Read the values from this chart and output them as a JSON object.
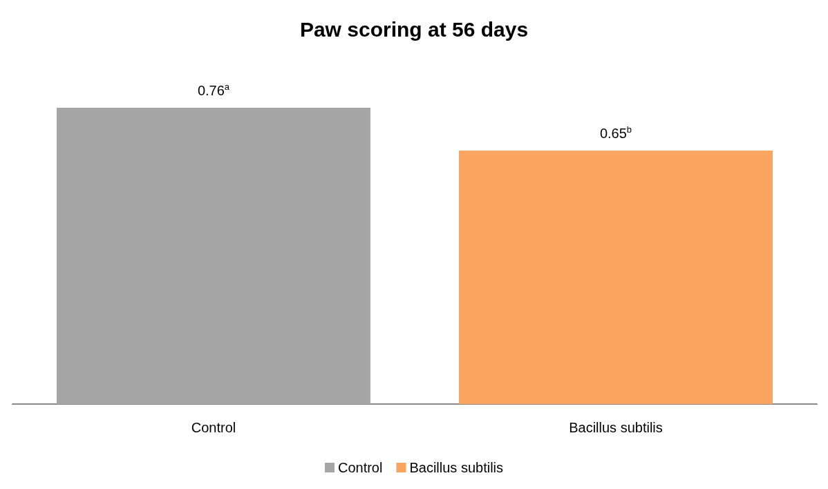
{
  "chart_data": {
    "type": "bar",
    "title": "Paw scoring at 56 days",
    "categories": [
      "Control",
      "Bacillus subtilis"
    ],
    "stacked": true,
    "legend": "bottom",
    "grid": false,
    "series": [
      {
        "name": "Control",
        "color": "#a5a5a5",
        "values": [
          0.76,
          null
        ],
        "value_labels": [
          "0.76$^{a}$",
          null
        ]
      },
      {
        "name": "Bacillus subtilis",
        "color": "#f9a45f",
        "values": [
          null,
          0.65
        ],
        "value_labels": [
          null,
          "0.65$^{b}$"
        ]
      }
    ]
  }
}
